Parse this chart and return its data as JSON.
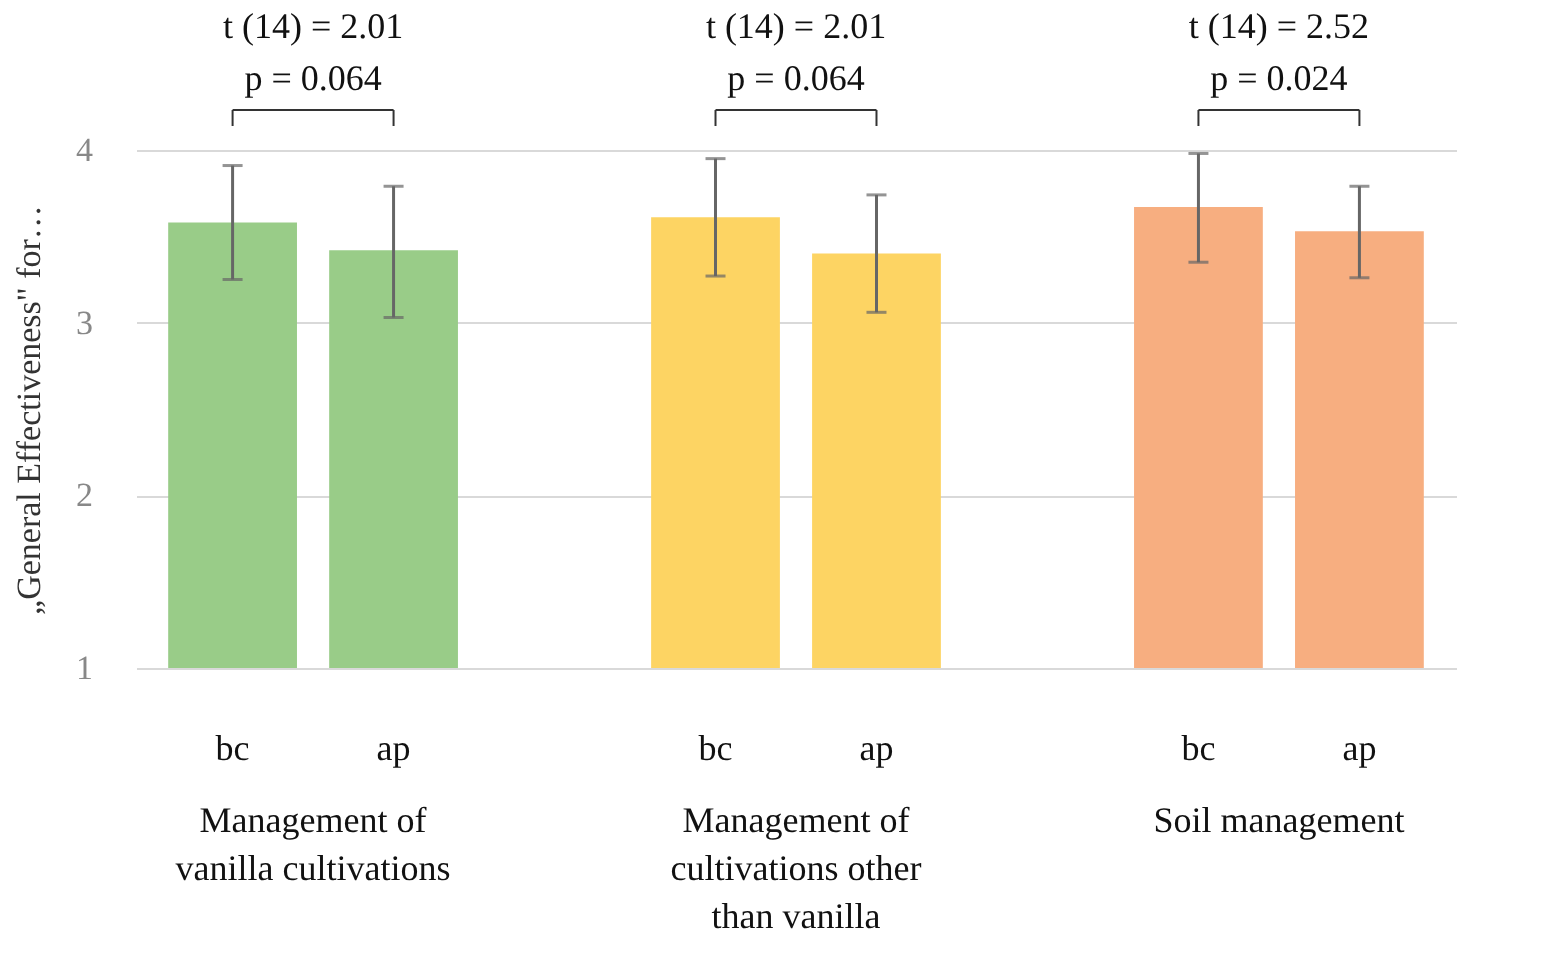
{
  "chart_data": {
    "type": "bar",
    "ylabel": "„General Effectiveness\" for…",
    "categories": [
      "Management of vanilla cultivations",
      "Management of cultivations other than vanilla",
      "Soil management"
    ],
    "series": [
      {
        "name": "bc",
        "colors": [
          "#99cc88",
          "#fdd463",
          "#f7ae80"
        ],
        "values": [
          3.58,
          3.61,
          3.67
        ],
        "errors": [
          [
            3.25,
            3.91
          ],
          [
            3.27,
            3.95
          ],
          [
            3.35,
            3.98
          ]
        ]
      },
      {
        "name": "ap",
        "colors": [
          "#99cc88",
          "#fdd463",
          "#f7ae80"
        ],
        "values": [
          3.42,
          3.4,
          3.53
        ],
        "errors": [
          [
            3.03,
            3.79
          ],
          [
            3.06,
            3.74
          ],
          [
            3.26,
            3.79
          ]
        ]
      }
    ],
    "ylim": [
      1,
      4
    ],
    "yticks": [
      1,
      2,
      3,
      4
    ],
    "grid": "y",
    "annotations": [
      "t (14) = 2.01",
      "p = 0.064",
      "t (14) = 2.01",
      "p = 0.064",
      "t (14) = 2.52",
      "p = 0.024"
    ]
  }
}
